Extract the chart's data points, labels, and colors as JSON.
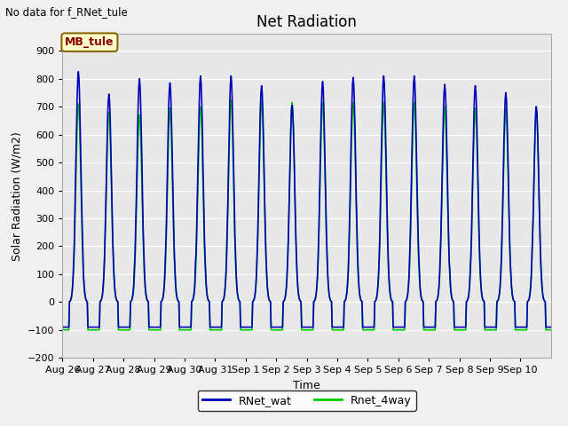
{
  "title": "Net Radiation",
  "xlabel": "Time",
  "ylabel": "Solar Radiation (W/m2)",
  "ylim": [
    -200,
    960
  ],
  "yticks": [
    -200,
    -100,
    0,
    100,
    200,
    300,
    400,
    500,
    600,
    700,
    800,
    900
  ],
  "no_data_text": "No data for f_RNet_tule",
  "mb_tule_label": "MB_tule",
  "line1_label": "RNet_wat",
  "line1_color": "#0000bb",
  "line2_label": "Rnet_4way",
  "line2_color": "#00cc00",
  "fig_bg_color": "#f0f0f0",
  "plot_bg_color": "#e8e8e8",
  "grid_color": "#ffffff",
  "n_days": 16,
  "dt_hours": 0.5,
  "daily_peaks_blue": [
    825,
    745,
    800,
    785,
    810,
    810,
    775,
    705,
    790,
    805,
    810,
    810,
    780,
    775,
    750,
    700
  ],
  "daily_peaks_green": [
    710,
    680,
    670,
    695,
    700,
    725,
    720,
    715,
    715,
    715,
    715,
    715,
    700,
    695,
    690,
    685
  ],
  "night_min_blue": -90,
  "night_min_green": -100,
  "line_width": 1.2,
  "peak_hour": 12.5,
  "day_start": 5.5,
  "day_end": 19.5,
  "sigma": 2.8
}
